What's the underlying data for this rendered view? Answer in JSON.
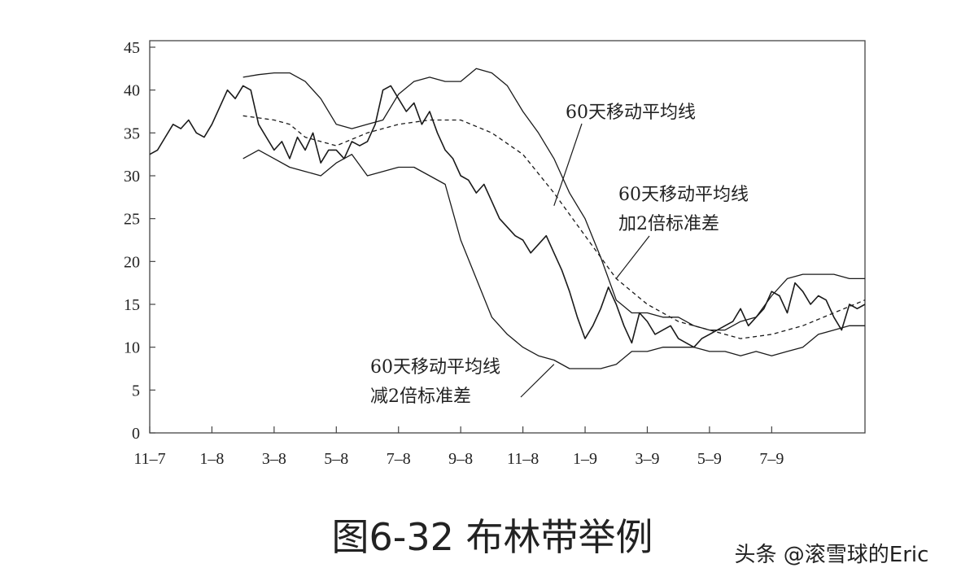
{
  "chart_data": {
    "type": "line",
    "title": "",
    "xlabel": "",
    "ylabel": "",
    "ylim": [
      0,
      45
    ],
    "yticks": [
      0,
      5,
      10,
      15,
      20,
      25,
      30,
      35,
      40,
      45
    ],
    "x_range": [
      0,
      23
    ],
    "xticks": [
      {
        "label": "11–7",
        "x": 0
      },
      {
        "label": "1–8",
        "x": 2
      },
      {
        "label": "3–8",
        "x": 4
      },
      {
        "label": "5–8",
        "x": 6
      },
      {
        "label": "7–8",
        "x": 8
      },
      {
        "label": "9–8",
        "x": 10
      },
      {
        "label": "11–8",
        "x": 12
      },
      {
        "label": "1–9",
        "x": 14
      },
      {
        "label": "3–9",
        "x": 16
      },
      {
        "label": "5–9",
        "x": 18
      },
      {
        "label": "7–9",
        "x": 20
      }
    ],
    "grid": false,
    "legend": "none",
    "series": [
      {
        "style": "jagged",
        "x": [
          0,
          0.25,
          0.5,
          0.75,
          1,
          1.25,
          1.5,
          1.75,
          2,
          2.25,
          2.5,
          2.75,
          3,
          3.25,
          3.5,
          3.75,
          4,
          4.25,
          4.5,
          4.75,
          5,
          5.25,
          5.5,
          5.75,
          6,
          6.25,
          6.5,
          6.75,
          7,
          7.25,
          7.5,
          7.75,
          8,
          8.25,
          8.5,
          8.75,
          9,
          9.25,
          9.5,
          9.75,
          10,
          10.25,
          10.5,
          10.75,
          11,
          11.25,
          11.5,
          11.75,
          12,
          12.25,
          12.5,
          12.75,
          13,
          13.25,
          13.5,
          13.75,
          14,
          14.25,
          14.5,
          14.75,
          15,
          15.25,
          15.5,
          15.75,
          16,
          16.25,
          16.5,
          16.75,
          17,
          17.25,
          17.5,
          17.75,
          18,
          18.25,
          18.5,
          18.75,
          19,
          19.25,
          19.5,
          19.75,
          20,
          20.25,
          20.5,
          20.75,
          21,
          21.25,
          21.5,
          21.75,
          22,
          22.25,
          22.5,
          22.75,
          23
        ],
        "values": [
          32.5,
          33,
          34.5,
          36,
          35.5,
          36.5,
          35,
          34.5,
          36,
          38,
          40,
          39,
          40.5,
          40,
          36,
          34.5,
          33,
          34,
          32,
          34.5,
          33,
          35,
          31.5,
          33,
          33,
          32,
          34,
          33.5,
          34,
          36,
          40,
          40.5,
          39,
          37.5,
          38.5,
          36,
          37.5,
          35,
          33,
          32,
          30,
          29.5,
          28,
          29,
          27,
          25,
          24,
          23,
          22.5,
          21,
          22,
          23,
          21,
          19,
          16.5,
          13.5,
          11,
          12.5,
          14.5,
          17,
          15,
          12.5,
          10.5,
          14,
          13,
          11.5,
          12,
          12.5,
          11,
          10.5,
          10,
          11,
          11.5,
          12,
          12.5,
          13,
          14.5,
          12.5,
          13.5,
          14.5,
          16.5,
          16,
          14,
          17.5,
          16.5,
          15,
          16,
          15.5,
          13.5,
          12,
          15,
          14.5,
          15
        ]
      },
      {
        "style": "dashed",
        "x": [
          3,
          4,
          4.5,
          5,
          5.5,
          6,
          7,
          8,
          9,
          10,
          11,
          12,
          13,
          14,
          15,
          16,
          17,
          18,
          19,
          20,
          21,
          22,
          23
        ],
        "values": [
          37,
          36.5,
          36,
          34.5,
          34,
          33.5,
          35,
          36,
          36.5,
          36.5,
          35,
          32.5,
          28,
          23,
          18,
          15,
          13,
          12,
          11,
          11.5,
          12.5,
          14,
          15.5
        ]
      },
      {
        "style": "solid",
        "x": [
          3,
          3.5,
          4,
          4.5,
          5,
          5.5,
          6,
          6.5,
          7,
          7.5,
          8,
          8.5,
          9,
          9.5,
          10,
          10.5,
          11,
          11.5,
          12,
          12.5,
          13,
          13.5,
          14,
          14.5,
          15,
          15.5,
          16,
          16.5,
          17,
          17.5,
          18,
          18.5,
          19,
          19.5,
          20,
          20.5,
          21,
          21.5,
          22,
          22.5,
          23
        ],
        "values": [
          41.5,
          41.8,
          42,
          42,
          41,
          39,
          36,
          35.5,
          36,
          36.5,
          39.5,
          41,
          41.5,
          41,
          41,
          42.5,
          42,
          40.5,
          37.5,
          35,
          32,
          28,
          25,
          20.5,
          15.5,
          14,
          14,
          13.5,
          13.5,
          12.5,
          12,
          12,
          13,
          13.5,
          16,
          18,
          18.5,
          18.5,
          18.5,
          18,
          18
        ]
      },
      {
        "style": "solid",
        "x": [
          3,
          3.5,
          4,
          4.5,
          5,
          5.5,
          6,
          6.5,
          7,
          7.5,
          8,
          8.5,
          9,
          9.5,
          10,
          10.5,
          11,
          11.5,
          12,
          12.5,
          13,
          13.5,
          14,
          14.5,
          15,
          15.5,
          16,
          16.5,
          17,
          17.5,
          18,
          18.5,
          19,
          19.5,
          20,
          20.5,
          21,
          21.5,
          22,
          22.5,
          23
        ],
        "values": [
          32,
          33,
          32,
          31,
          30.5,
          30,
          31.5,
          32.5,
          30,
          30.5,
          31,
          31,
          30,
          29,
          22.5,
          18,
          13.5,
          11.5,
          10,
          9,
          8.5,
          7.5,
          7.5,
          7.5,
          8,
          9.5,
          9.5,
          10,
          10,
          10,
          9.5,
          9.5,
          9,
          9.5,
          9,
          9.5,
          10,
          11.5,
          12,
          12.5,
          12.5
        ]
      }
    ],
    "annotations": [
      {
        "lines": [
          "60天移动平均线"
        ],
        "target_x": 13,
        "target_y": 26.5
      },
      {
        "lines": [
          "60天移动平均线",
          "加2倍标准差"
        ],
        "target_x": 15,
        "target_y": 18
      },
      {
        "lines": [
          "60天移动平均线",
          "减2倍标准差"
        ],
        "target_x": 13,
        "target_y": 8
      }
    ]
  },
  "caption": "图6-32 布林带举例",
  "watermark": "头条 @滚雪球的Eric"
}
